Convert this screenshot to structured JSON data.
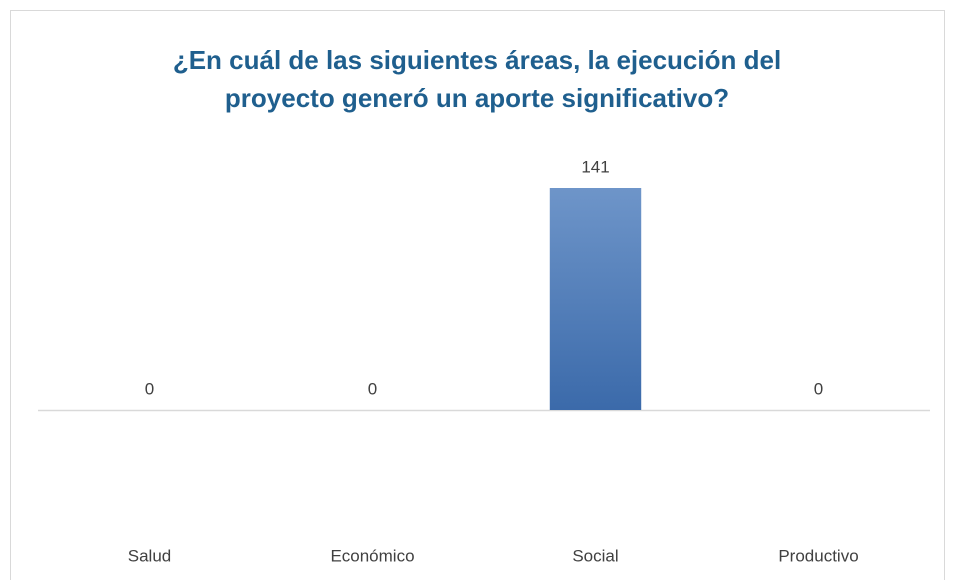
{
  "chart_data": {
    "type": "bar",
    "title": [
      "¿En cuál de las siguientes áreas, la ejecución del",
      "proyecto generó un aporte significativo?"
    ],
    "categories": [
      "Salud",
      "Económico",
      "Social",
      "Productivo"
    ],
    "values": [
      0,
      0,
      141,
      0
    ],
    "color": "#4a7bbd"
  }
}
